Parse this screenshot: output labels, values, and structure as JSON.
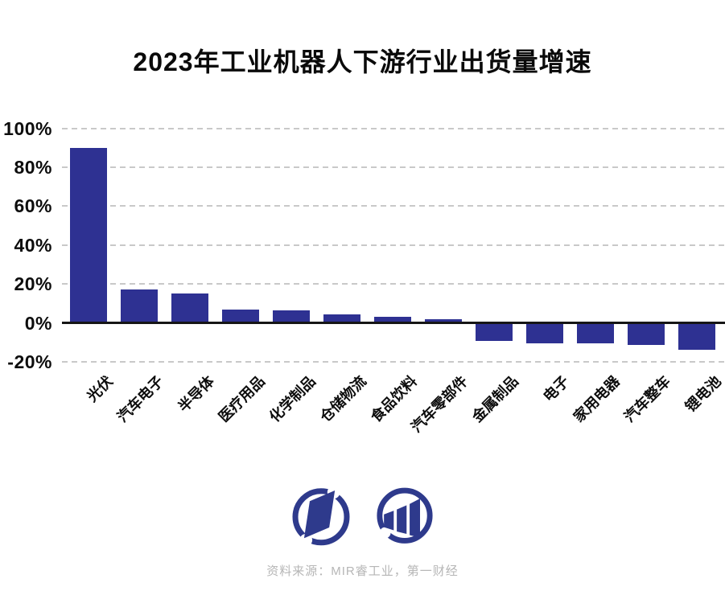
{
  "title": "2023年工业机器人下游行业出货量增速",
  "source_note": "资料来源：MIR睿工业，第一财经",
  "colors": {
    "bar": "#2e3192",
    "logo": "#2e3a8c",
    "gridline": "#c9c9c9",
    "axis": "#161616",
    "title_text": "#0a0a0a",
    "source_text": "#b6b6b6"
  },
  "logos": [
    {
      "name": "yicai-logo"
    },
    {
      "name": "mir-logo"
    }
  ],
  "chart_data": {
    "type": "bar",
    "title": "2023年工业机器人下游行业出货量增速",
    "categories": [
      "光伏",
      "汽车电子",
      "半导体",
      "医疗用品",
      "化学制品",
      "仓储物流",
      "食品饮料",
      "汽车零部件",
      "金属制品",
      "电子",
      "家用电器",
      "汽车整车",
      "锂电池"
    ],
    "values": [
      90,
      17,
      15,
      7,
      6.5,
      4.5,
      3,
      2,
      -9.5,
      -10.5,
      -10.5,
      -11.5,
      -14
    ],
    "unit": "%",
    "xlabel": "",
    "ylabel": "",
    "ylim": [
      -20,
      100
    ],
    "yticks": [
      100,
      80,
      60,
      40,
      20,
      0,
      -20
    ],
    "ytick_labels": [
      "100%",
      "80%",
      "60%",
      "40%",
      "20%",
      "0%",
      "-20%"
    ],
    "grid": "horizontal dashed, zero line solid",
    "legend": "none",
    "bar_color": "#2e3192"
  }
}
